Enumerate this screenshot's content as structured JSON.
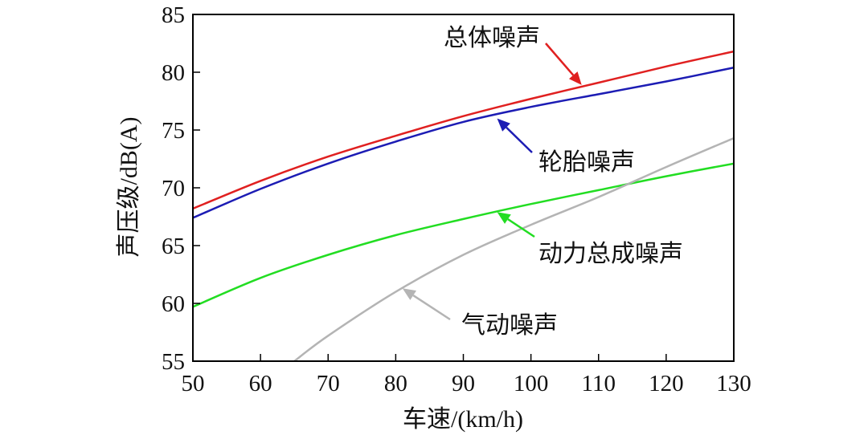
{
  "chart_data": {
    "type": "line",
    "title": "",
    "xlabel": "车速/(km/h)",
    "ylabel": "声压级/dB(A)",
    "xlim": [
      50,
      130
    ],
    "ylim": [
      55,
      85
    ],
    "xticks": [
      50,
      60,
      70,
      80,
      90,
      100,
      110,
      120,
      130
    ],
    "yticks": [
      55,
      60,
      65,
      70,
      75,
      80,
      85
    ],
    "grid": false,
    "legend": "none",
    "series": [
      {
        "name": "总体噪声",
        "color": "#e02020",
        "x": [
          50,
          60,
          70,
          80,
          90,
          100,
          110,
          120,
          130
        ],
        "y": [
          68.2,
          70.6,
          72.7,
          74.5,
          76.2,
          77.7,
          79.1,
          80.5,
          81.8
        ]
      },
      {
        "name": "轮胎噪声",
        "color": "#1c1cb4",
        "x": [
          50,
          60,
          70,
          80,
          90,
          100,
          110,
          120,
          130
        ],
        "y": [
          67.4,
          69.9,
          72.1,
          74.0,
          75.7,
          77.0,
          78.1,
          79.2,
          80.4
        ]
      },
      {
        "name": "动力总成噪声",
        "color": "#22dd22",
        "x": [
          50,
          60,
          70,
          80,
          90,
          100,
          110,
          120,
          130
        ],
        "y": [
          59.7,
          62.2,
          64.2,
          65.9,
          67.3,
          68.6,
          69.8,
          71.0,
          72.1
        ]
      },
      {
        "name": "气动噪声",
        "color": "#b4b4b4",
        "x": [
          65,
          70,
          80,
          90,
          100,
          110,
          120,
          130
        ],
        "y": [
          55.0,
          57.2,
          61.0,
          64.2,
          66.8,
          69.2,
          71.8,
          74.3
        ]
      }
    ],
    "annotations": [
      {
        "text": "总体噪声",
        "series": "总体噪声",
        "point": [
          107.5,
          78.9
        ]
      },
      {
        "text": "轮胎噪声",
        "series": "轮胎噪声",
        "point": [
          95,
          76.0
        ]
      },
      {
        "text": "动力总成噪声",
        "series": "动力总成噪声",
        "point": [
          95,
          67.9
        ]
      },
      {
        "text": "气动噪声",
        "series": "气动噪声",
        "point": [
          81,
          61.3
        ]
      }
    ]
  }
}
